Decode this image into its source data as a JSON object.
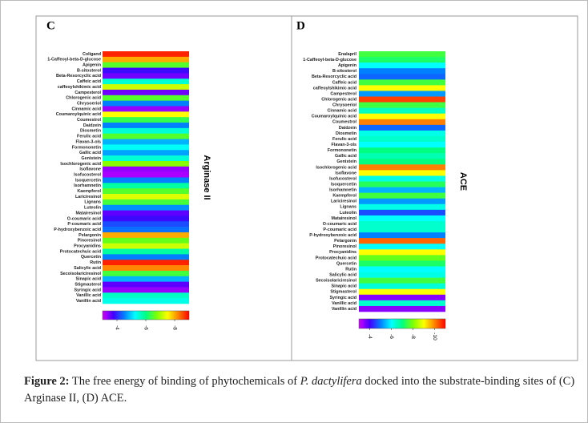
{
  "chart_data": [
    {
      "type": "heatmap",
      "title": "C",
      "axis_label": "Arginase II",
      "categories": [
        "Coligand",
        "1-Caffeoyl-beta-D-glucose",
        "Apigenin",
        "B-sitosterol",
        "Beta-Resorcyclic acid",
        "Caffeic acid",
        "caffeoylshikimic acid",
        "Campesterol",
        "Chlorogenic acid",
        "Chrysoeriol",
        "Cinnamic acid",
        "Coumaroylquinic acid",
        "Coumestrol",
        "Daidzein",
        "Diosmetin",
        "Ferulic acid",
        "Flavan-3-ols",
        "Formononetin",
        "Gallic acid",
        "Genistein",
        "Isochlorogenic acid",
        "Isoflavone",
        "Isofucosterol",
        "Isoquercetin",
        "Isorhamnetin",
        "Kaempferol",
        "Lariciresinol",
        "Lignans",
        "Luteolin",
        "Matairesinol",
        "O-coumaric acid",
        "P-coumaric acid",
        "P-hydroxybenzoic acid",
        "Pelargonin",
        "Pinoresinol",
        "Procyanidins",
        "Protocatechuic acid",
        "Quercetin",
        "Rutin",
        "Salicylic acid",
        "Secoisolariciresinol",
        "Sinapic acid",
        "Stigmasterol",
        "Syringic acid",
        "Vanillic acid",
        "Vanillin acid"
      ],
      "values": [
        -8.8,
        -8,
        -6.5,
        -3.8,
        -3.5,
        -5.5,
        -7.2,
        -3.5,
        -6.5,
        -4.5,
        -3.3,
        -7.5,
        -6.3,
        -4.5,
        -5.5,
        -6.5,
        -4.8,
        -5.3,
        -4.7,
        -5.5,
        -6.8,
        -3.3,
        -3.2,
        -4.5,
        -5.8,
        -6.5,
        -7.3,
        -6.4,
        -4.6,
        -3.6,
        -3.8,
        -4.2,
        -4.4,
        -8,
        -6.6,
        -7.2,
        -5.8,
        -4.5,
        -8.8,
        -8.2,
        -6.4,
        -4.8,
        -3.6,
        -3.3,
        -5.6,
        -5.4
      ],
      "zlim": [
        -3,
        -9
      ],
      "zticks": [
        -4,
        -6,
        -8
      ],
      "colorscale": [
        "#d000ff",
        "#4000ff",
        "#0080ff",
        "#00ffff",
        "#00ff80",
        "#80ff00",
        "#ffff00",
        "#ff8000",
        "#ff0000"
      ]
    },
    {
      "type": "heatmap",
      "title": "D",
      "axis_label": "ACE",
      "categories": [
        "Enalapril",
        "1-Caffeoyl-beta-D-glucose",
        "Apigenin",
        "B-sitosterol",
        "Beta-Resorcyclic acid",
        "Caffeic acid",
        "caffeoylshikimic acid",
        "Campesterol",
        "Chlorogenic acid",
        "Chrysoeriol",
        "Cinnamic acid",
        "Coumaroylquinic acid",
        "Coumestrol",
        "Daidzein",
        "Diosmetin",
        "Ferulic acid",
        "Flavan-3-ols",
        "Formononetin",
        "Gallic acid",
        "Genistein",
        "Isochlorogenic acid",
        "Isoflavone",
        "Isofucosterol",
        "Isoquercetin",
        "Isorhamnetin",
        "Kaempferol",
        "Lariciresinol",
        "Lignans",
        "Luteolin",
        "Matairesinol",
        "O-coumaric acid",
        "P-coumaric acid",
        "P-hydroxybenzoic acid",
        "Pelargonin",
        "Pinoresinol",
        "Procyanidins",
        "Protocatechuic acid",
        "Quercetin",
        "Rutin",
        "Salicylic acid",
        "Secoisolariciresinol",
        "Sinapic acid",
        "Stigmasterol",
        "Syringic acid",
        "Vanillic acid",
        "Vanillin acid"
      ],
      "values": [
        -7.5,
        -7.2,
        -6,
        -5,
        -4.8,
        -7.5,
        -9,
        -5.2,
        -10.5,
        -7.5,
        -6.5,
        -9,
        -10,
        -4.8,
        -6.2,
        -6.4,
        -6,
        -7,
        -6.6,
        -7,
        -10,
        -9,
        -6.2,
        -7.3,
        -5.4,
        -7.5,
        -5.2,
        -6.2,
        -4.6,
        -6,
        -6.4,
        -6.4,
        -5,
        -10.2,
        -6,
        -9,
        -7.8,
        -7.2,
        -6,
        -6.2,
        -7.5,
        -6.3,
        -9,
        -3.5,
        -6.4,
        -3.5
      ],
      "zlim": [
        -3,
        -11
      ],
      "zticks": [
        -4,
        -6,
        -8,
        -10
      ],
      "colorscale": [
        "#d000ff",
        "#4000ff",
        "#0080ff",
        "#00ffff",
        "#00ff80",
        "#80ff00",
        "#ffff00",
        "#ff8000",
        "#ff0000"
      ]
    }
  ],
  "caption": {
    "label": "Figure 2:",
    "text_before": "The free energy of binding of phytochemicals of ",
    "species": "P. dactylifera",
    "text_after": " docked into the substrate-binding sites of (C) Arginase II, (D) ACE."
  }
}
